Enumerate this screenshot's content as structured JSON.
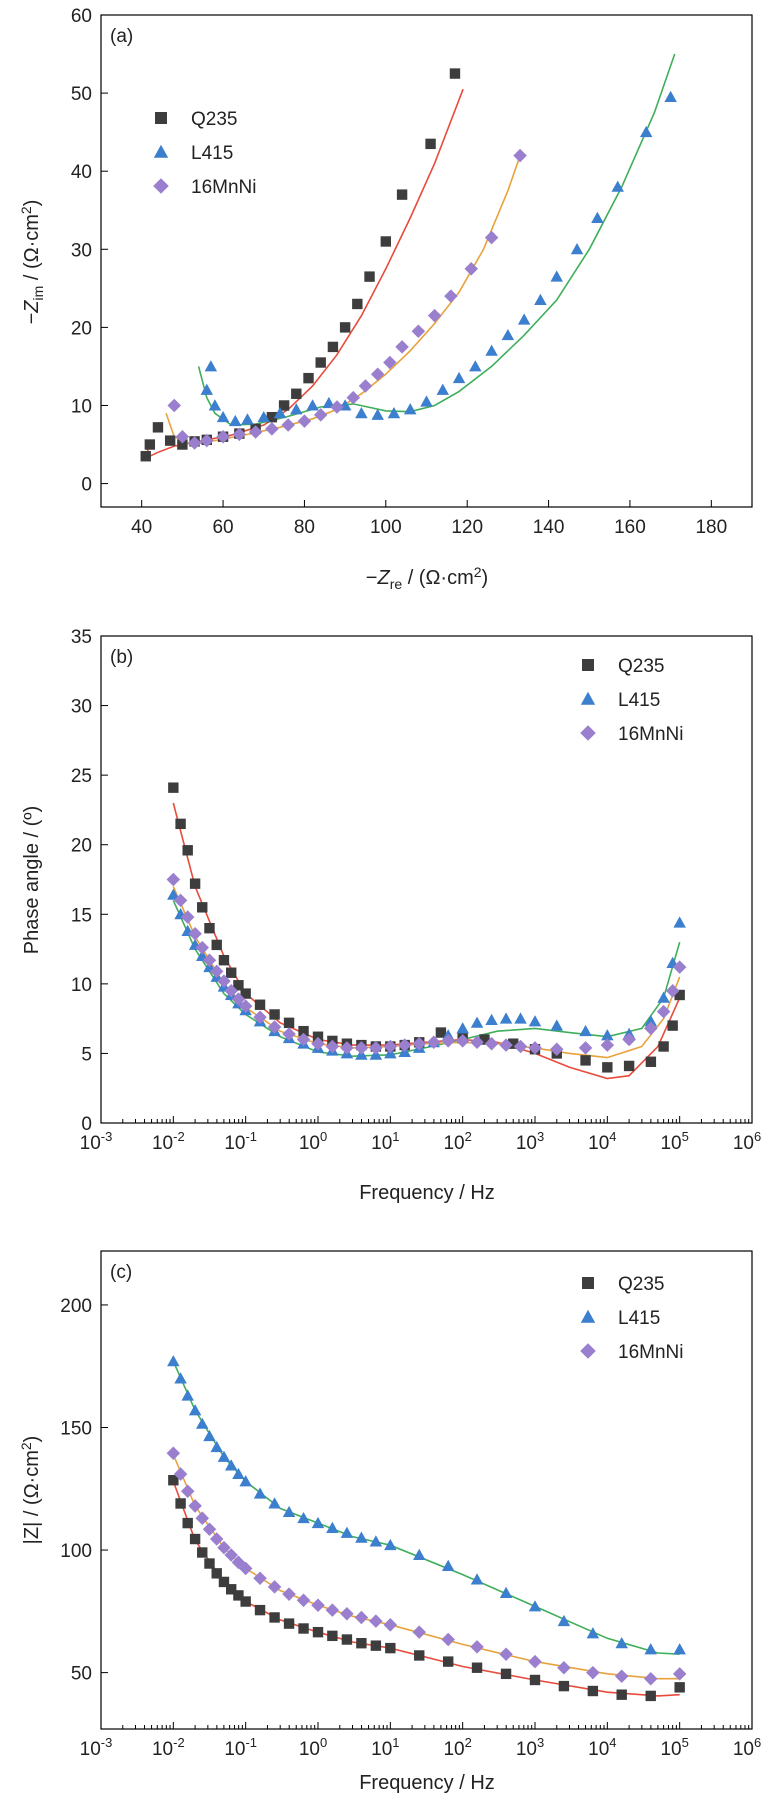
{
  "colors": {
    "Q235": "#3d3d3d",
    "L415": "#3b7fce",
    "16MnNi": "#9b7fcf",
    "fit_Q235": "#e84b3c",
    "fit_L415": "#3fae5a",
    "fit_16MnNi": "#e8a23c"
  },
  "chart_data": [
    {
      "type": "scatter",
      "panel_label": "(a)",
      "xlabel": "−Z_re / (Ω·cm²)",
      "ylabel": "−Z_im / (Ω·cm²)",
      "xlim": [
        30,
        190
      ],
      "ylim": [
        -3,
        60
      ],
      "xticks": [
        40,
        60,
        80,
        100,
        120,
        140,
        160,
        180
      ],
      "yticks": [
        0,
        10,
        20,
        30,
        40,
        50,
        60
      ],
      "legend_position": "top-left",
      "series": [
        {
          "name": "Q235",
          "marker": "square",
          "x": [
            41,
            42,
            44,
            47,
            50,
            53,
            56,
            60,
            64,
            68,
            72,
            75,
            78,
            81,
            84,
            87,
            90,
            93,
            96,
            100,
            104,
            111,
            117
          ],
          "y": [
            3.5,
            5,
            7.2,
            5.5,
            5,
            5.4,
            5.6,
            6,
            6.4,
            7,
            8.5,
            10,
            11.5,
            13.5,
            15.5,
            17.5,
            20,
            23,
            26.5,
            31,
            37,
            43.5,
            52.5
          ]
        },
        {
          "name": "L415",
          "marker": "triangle",
          "x": [
            56,
            57,
            58,
            60,
            63,
            66,
            70,
            74,
            78,
            82,
            86,
            90,
            94,
            98,
            102,
            106,
            110,
            114,
            118,
            122,
            126,
            130,
            134,
            138,
            142,
            147,
            152,
            157,
            164,
            170
          ],
          "y": [
            12,
            15,
            10,
            8.5,
            8,
            8.2,
            8.5,
            9,
            9.5,
            10,
            10.3,
            10,
            9,
            8.8,
            9,
            9.5,
            10.5,
            12,
            13.5,
            15,
            17,
            19,
            21,
            23.5,
            26.5,
            30,
            34,
            38,
            45,
            49.5
          ]
        },
        {
          "name": "16MnNi",
          "marker": "diamond",
          "x": [
            48,
            50,
            53,
            56,
            60,
            64,
            68,
            72,
            76,
            80,
            84,
            88,
            92,
            95,
            98,
            101,
            104,
            108,
            112,
            116,
            121,
            126,
            133
          ],
          "y": [
            10,
            6,
            5.2,
            5.5,
            6,
            6.3,
            6.6,
            7,
            7.5,
            8,
            8.8,
            9.8,
            11,
            12.5,
            14,
            15.5,
            17.5,
            19.5,
            21.5,
            24,
            27.5,
            31.5,
            42
          ]
        }
      ],
      "fits": [
        {
          "name": "Q235",
          "x": [
            41,
            42,
            44,
            48,
            55,
            62,
            70,
            76,
            82,
            88,
            94,
            100,
            106,
            112,
            119
          ],
          "y": [
            5,
            3.5,
            4,
            4.8,
            5.5,
            6.2,
            7.5,
            9.5,
            12.5,
            16.5,
            21.5,
            27.5,
            34,
            41,
            50.5
          ]
        },
        {
          "name": "L415",
          "x": [
            54,
            56,
            58,
            62,
            68,
            76,
            84,
            92,
            100,
            106,
            112,
            118,
            126,
            134,
            142,
            150,
            158,
            166,
            171
          ],
          "y": [
            15,
            11,
            9,
            7.5,
            7.6,
            8.6,
            9.8,
            10.2,
            9.3,
            9.2,
            10,
            11.8,
            15,
            19,
            23.5,
            30,
            38,
            47.5,
            55
          ]
        },
        {
          "name": "16MnNi",
          "x": [
            46,
            48,
            52,
            58,
            66,
            74,
            82,
            88,
            94,
            100,
            106,
            112,
            118,
            124,
            130,
            133
          ],
          "y": [
            9,
            6,
            5,
            5.5,
            6.3,
            7.2,
            8.3,
            9.5,
            11.5,
            14,
            17,
            20.5,
            24.5,
            30,
            37.5,
            42
          ]
        }
      ]
    },
    {
      "type": "scatter",
      "panel_label": "(b)",
      "xlabel": "Frequency / Hz",
      "ylabel": "Phase angle / (º)",
      "x_scale": "log",
      "xlim": [
        0.001,
        1000000
      ],
      "ylim": [
        0,
        35
      ],
      "xtick_exponents": [
        -3,
        -2,
        -1,
        0,
        1,
        2,
        3,
        4,
        5,
        6
      ],
      "yticks": [
        0,
        5,
        10,
        15,
        20,
        25,
        30,
        35
      ],
      "legend_position": "top-right",
      "series": [
        {
          "name": "Q235",
          "marker": "square",
          "x": [
            0.01,
            0.0126,
            0.0158,
            0.02,
            0.0251,
            0.0316,
            0.0398,
            0.0501,
            0.0631,
            0.0794,
            0.1,
            0.158,
            0.251,
            0.398,
            0.631,
            1,
            1.58,
            2.51,
            3.98,
            6.31,
            10,
            15.8,
            25.1,
            50,
            100,
            200,
            500,
            1000,
            2000,
            5000,
            10000,
            20000,
            40000,
            60000,
            80000,
            100000
          ],
          "y": [
            24.1,
            21.5,
            19.6,
            17.2,
            15.5,
            14,
            12.8,
            11.7,
            10.8,
            9.9,
            9.3,
            8.5,
            7.8,
            7.2,
            6.6,
            6.2,
            5.9,
            5.7,
            5.6,
            5.5,
            5.5,
            5.6,
            5.8,
            6.5,
            6.1,
            6,
            5.7,
            5.3,
            5,
            4.5,
            4,
            4.1,
            4.4,
            5.5,
            7,
            9.2
          ]
        },
        {
          "name": "L415",
          "marker": "triangle",
          "x": [
            0.01,
            0.0126,
            0.0158,
            0.02,
            0.0251,
            0.0316,
            0.0398,
            0.0501,
            0.0631,
            0.0794,
            0.1,
            0.158,
            0.251,
            0.398,
            0.631,
            1,
            1.58,
            2.51,
            3.98,
            6.31,
            10,
            15.8,
            25.1,
            39.8,
            63.1,
            100,
            158,
            251,
            398,
            631,
            1000,
            2000,
            5000,
            10000,
            20000,
            40000,
            60000,
            80000,
            100000
          ],
          "y": [
            16.4,
            15,
            13.8,
            12.8,
            12,
            11.2,
            10.5,
            9.8,
            9.2,
            8.6,
            8.1,
            7.3,
            6.6,
            6.1,
            5.7,
            5.4,
            5.2,
            5,
            4.9,
            4.9,
            5,
            5.1,
            5.4,
            5.8,
            6.3,
            6.8,
            7.2,
            7.4,
            7.5,
            7.5,
            7.3,
            7,
            6.6,
            6.3,
            6.4,
            7.3,
            9,
            11.5,
            14.4
          ]
        },
        {
          "name": "16MnNi",
          "marker": "diamond",
          "x": [
            0.01,
            0.0126,
            0.0158,
            0.02,
            0.0251,
            0.0316,
            0.0398,
            0.0501,
            0.0631,
            0.0794,
            0.1,
            0.158,
            0.251,
            0.398,
            0.631,
            1,
            1.58,
            2.51,
            3.98,
            6.31,
            10,
            15.8,
            25.1,
            39.8,
            63.1,
            100,
            158,
            251,
            398,
            631,
            1000,
            2000,
            5000,
            10000,
            20000,
            40000,
            60000,
            80000,
            100000
          ],
          "y": [
            17.5,
            16,
            14.8,
            13.6,
            12.6,
            11.7,
            10.9,
            10.2,
            9.5,
            8.9,
            8.4,
            7.6,
            6.9,
            6.4,
            6,
            5.7,
            5.5,
            5.4,
            5.4,
            5.4,
            5.5,
            5.6,
            5.7,
            5.8,
            5.9,
            5.9,
            5.8,
            5.7,
            5.6,
            5.5,
            5.4,
            5.3,
            5.4,
            5.6,
            6,
            6.8,
            8,
            9.5,
            11.2
          ]
        }
      ],
      "fits": [
        {
          "name": "Q235",
          "x": [
            0.01,
            0.02,
            0.05,
            0.1,
            0.3,
            1,
            3,
            10,
            30,
            100,
            300,
            1000,
            3000,
            10000,
            20000,
            50000,
            100000
          ],
          "y": [
            23,
            17,
            12,
            9.3,
            7.2,
            6,
            5.6,
            5.6,
            5.8,
            6,
            5.8,
            5,
            4,
            3.2,
            3.4,
            5.5,
            9
          ]
        },
        {
          "name": "L415",
          "x": [
            0.01,
            0.02,
            0.05,
            0.1,
            0.3,
            1,
            3,
            10,
            30,
            100,
            300,
            1000,
            3000,
            10000,
            30000,
            60000,
            100000
          ],
          "y": [
            16,
            12.5,
            9.3,
            7.8,
            6.2,
            5.1,
            4.8,
            4.9,
            5.4,
            6,
            6.6,
            6.8,
            6.5,
            6.2,
            6.8,
            9,
            13
          ]
        },
        {
          "name": "16MnNi",
          "x": [
            0.01,
            0.02,
            0.05,
            0.1,
            0.3,
            1,
            3,
            10,
            30,
            100,
            300,
            1000,
            3000,
            10000,
            30000,
            60000,
            100000
          ],
          "y": [
            17,
            13.4,
            10,
            8.3,
            6.6,
            5.7,
            5.4,
            5.5,
            5.7,
            5.8,
            5.7,
            5.4,
            5,
            4.7,
            5.5,
            7.5,
            10.5
          ]
        }
      ]
    },
    {
      "type": "scatter",
      "panel_label": "(c)",
      "xlabel": "Frequency / Hz",
      "ylabel": "|Z| / (Ω·cm²)",
      "x_scale": "log",
      "xlim": [
        0.001,
        1000000
      ],
      "ylim": [
        27,
        222
      ],
      "xtick_exponents": [
        -3,
        -2,
        -1,
        0,
        1,
        2,
        3,
        4,
        5,
        6
      ],
      "yticks": [
        50,
        100,
        150,
        200
      ],
      "legend_position": "top-right",
      "series": [
        {
          "name": "Q235",
          "marker": "square",
          "x": [
            0.01,
            0.0126,
            0.0158,
            0.02,
            0.0251,
            0.0316,
            0.0398,
            0.0501,
            0.0631,
            0.0794,
            0.1,
            0.158,
            0.251,
            0.398,
            0.631,
            1,
            1.58,
            2.51,
            3.98,
            6.31,
            10,
            25.1,
            63.1,
            158,
            398,
            1000,
            2510,
            6310,
            15800,
            39800,
            100000
          ],
          "y": [
            128.5,
            119,
            111,
            104.5,
            99,
            94.5,
            90.5,
            87,
            84,
            81.5,
            79,
            75.5,
            72.5,
            70,
            68,
            66.5,
            65,
            63.5,
            62,
            61,
            60,
            57,
            54.5,
            52,
            49.5,
            47,
            44.5,
            42.5,
            41,
            40.5,
            44
          ]
        },
        {
          "name": "L415",
          "marker": "triangle",
          "x": [
            0.01,
            0.0126,
            0.0158,
            0.02,
            0.0251,
            0.0316,
            0.0398,
            0.0501,
            0.0631,
            0.0794,
            0.1,
            0.158,
            0.251,
            0.398,
            0.631,
            1,
            1.58,
            2.51,
            3.98,
            6.31,
            10,
            25.1,
            63.1,
            158,
            398,
            1000,
            2510,
            6310,
            15800,
            39800,
            100000
          ],
          "y": [
            177,
            170,
            163,
            157,
            151.5,
            146.5,
            142,
            138,
            134.5,
            131,
            128,
            123,
            119,
            115.5,
            113,
            111,
            109,
            107,
            105,
            103.5,
            102,
            98,
            93.5,
            88,
            82.5,
            77,
            71,
            66,
            62,
            59.5,
            59.5
          ]
        },
        {
          "name": "16MnNi",
          "marker": "diamond",
          "x": [
            0.01,
            0.0126,
            0.0158,
            0.02,
            0.0251,
            0.0316,
            0.0398,
            0.0501,
            0.0631,
            0.0794,
            0.1,
            0.158,
            0.251,
            0.398,
            0.631,
            1,
            1.58,
            2.51,
            3.98,
            6.31,
            10,
            25.1,
            63.1,
            158,
            398,
            1000,
            2510,
            6310,
            15800,
            39800,
            100000
          ],
          "y": [
            139.5,
            131,
            124,
            118,
            113,
            108.5,
            104.5,
            101,
            98,
            95,
            92.5,
            88.5,
            85,
            82,
            79.5,
            77.5,
            75.5,
            74,
            72.5,
            71,
            69.5,
            66.5,
            63.5,
            60.5,
            57.5,
            54.5,
            52,
            50,
            48.5,
            47.5,
            49.5
          ]
        }
      ],
      "fits": [
        {
          "name": "Q235",
          "x": [
            0.01,
            0.02,
            0.05,
            0.1,
            0.3,
            1,
            3,
            10,
            100,
            1000,
            10000,
            50000,
            100000
          ],
          "y": [
            128,
            104,
            87,
            79,
            71.5,
            66.5,
            62.5,
            60,
            52.5,
            47,
            42,
            40.5,
            41
          ]
        },
        {
          "name": "L415",
          "x": [
            0.01,
            0.02,
            0.05,
            0.1,
            0.3,
            1,
            3,
            10,
            100,
            1000,
            10000,
            50000,
            100000
          ],
          "y": [
            177,
            157,
            138,
            128,
            117,
            111,
            105.5,
            102,
            90,
            77,
            64,
            58,
            57.5
          ]
        },
        {
          "name": "16MnNi",
          "x": [
            0.01,
            0.02,
            0.05,
            0.1,
            0.3,
            1,
            3,
            10,
            100,
            1000,
            10000,
            50000,
            100000
          ],
          "y": [
            139,
            118,
            101,
            92.5,
            83.5,
            77.5,
            73,
            69.5,
            61.5,
            54.5,
            49.5,
            47.5,
            47.5
          ]
        }
      ]
    }
  ]
}
